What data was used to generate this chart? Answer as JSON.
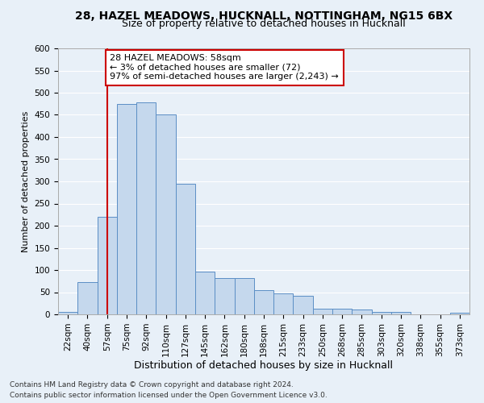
{
  "title_line1": "28, HAZEL MEADOWS, HUCKNALL, NOTTINGHAM, NG15 6BX",
  "title_line2": "Size of property relative to detached houses in Hucknall",
  "xlabel": "Distribution of detached houses by size in Hucknall",
  "ylabel": "Number of detached properties",
  "categories": [
    "22sqm",
    "40sqm",
    "57sqm",
    "75sqm",
    "92sqm",
    "110sqm",
    "127sqm",
    "145sqm",
    "162sqm",
    "180sqm",
    "198sqm",
    "215sqm",
    "233sqm",
    "250sqm",
    "268sqm",
    "285sqm",
    "303sqm",
    "320sqm",
    "338sqm",
    "355sqm",
    "373sqm"
  ],
  "values": [
    5,
    72,
    220,
    474,
    478,
    450,
    295,
    97,
    81,
    81,
    54,
    47,
    41,
    13,
    13,
    11,
    6,
    5,
    0,
    0,
    4
  ],
  "bar_color": "#c5d8ed",
  "bar_edge_color": "#5b8ec5",
  "annotation_text": "28 HAZEL MEADOWS: 58sqm\n← 3% of detached houses are smaller (72)\n97% of semi-detached houses are larger (2,243) →",
  "annotation_box_color": "#ffffff",
  "annotation_box_edge_color": "#cc0000",
  "vline_color": "#cc0000",
  "vline_x_index": 2,
  "ylim": [
    0,
    600
  ],
  "yticks": [
    0,
    50,
    100,
    150,
    200,
    250,
    300,
    350,
    400,
    450,
    500,
    550,
    600
  ],
  "footer_line1": "Contains HM Land Registry data © Crown copyright and database right 2024.",
  "footer_line2": "Contains public sector information licensed under the Open Government Licence v3.0.",
  "background_color": "#e8f0f8",
  "plot_bg_color": "#e8f0f8",
  "title1_fontsize": 10,
  "title2_fontsize": 9,
  "xlabel_fontsize": 9,
  "ylabel_fontsize": 8,
  "tick_fontsize": 7.5,
  "footer_fontsize": 6.5,
  "annotation_fontsize": 8
}
